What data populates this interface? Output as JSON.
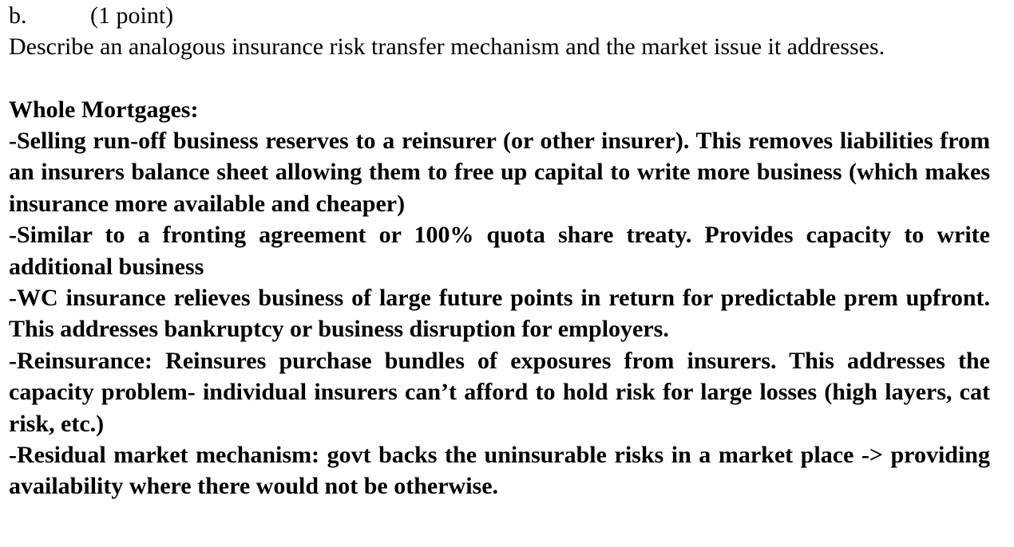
{
  "question": {
    "letter": "b.",
    "points": "(1 point)",
    "prompt": "Describe an analogous insurance risk transfer mechanism and the market issue it addresses."
  },
  "answer": {
    "heading": "Whole Mortgages:",
    "items": [
      "-Selling run-off business reserves to a reinsurer (or other insurer). This removes liabilities from an insurers balance sheet allowing them to free up capital to write more business (which makes insurance more available and cheaper)",
      "-Similar to a fronting agreement or 100% quota share treaty. Provides capacity to write additional business",
      "-WC insurance relieves business of large future points in return for predictable prem upfront. This addresses bankruptcy or business disruption for employers.",
      "-Reinsurance: Reinsures purchase bundles of exposures from insurers. This addresses the capacity problem- individual insurers can’t afford to hold risk for large losses (high layers, cat risk, etc.)",
      "-Residual market mechanism: govt backs the uninsurable risks in a market place -> providing availability where there would not be otherwise."
    ]
  }
}
